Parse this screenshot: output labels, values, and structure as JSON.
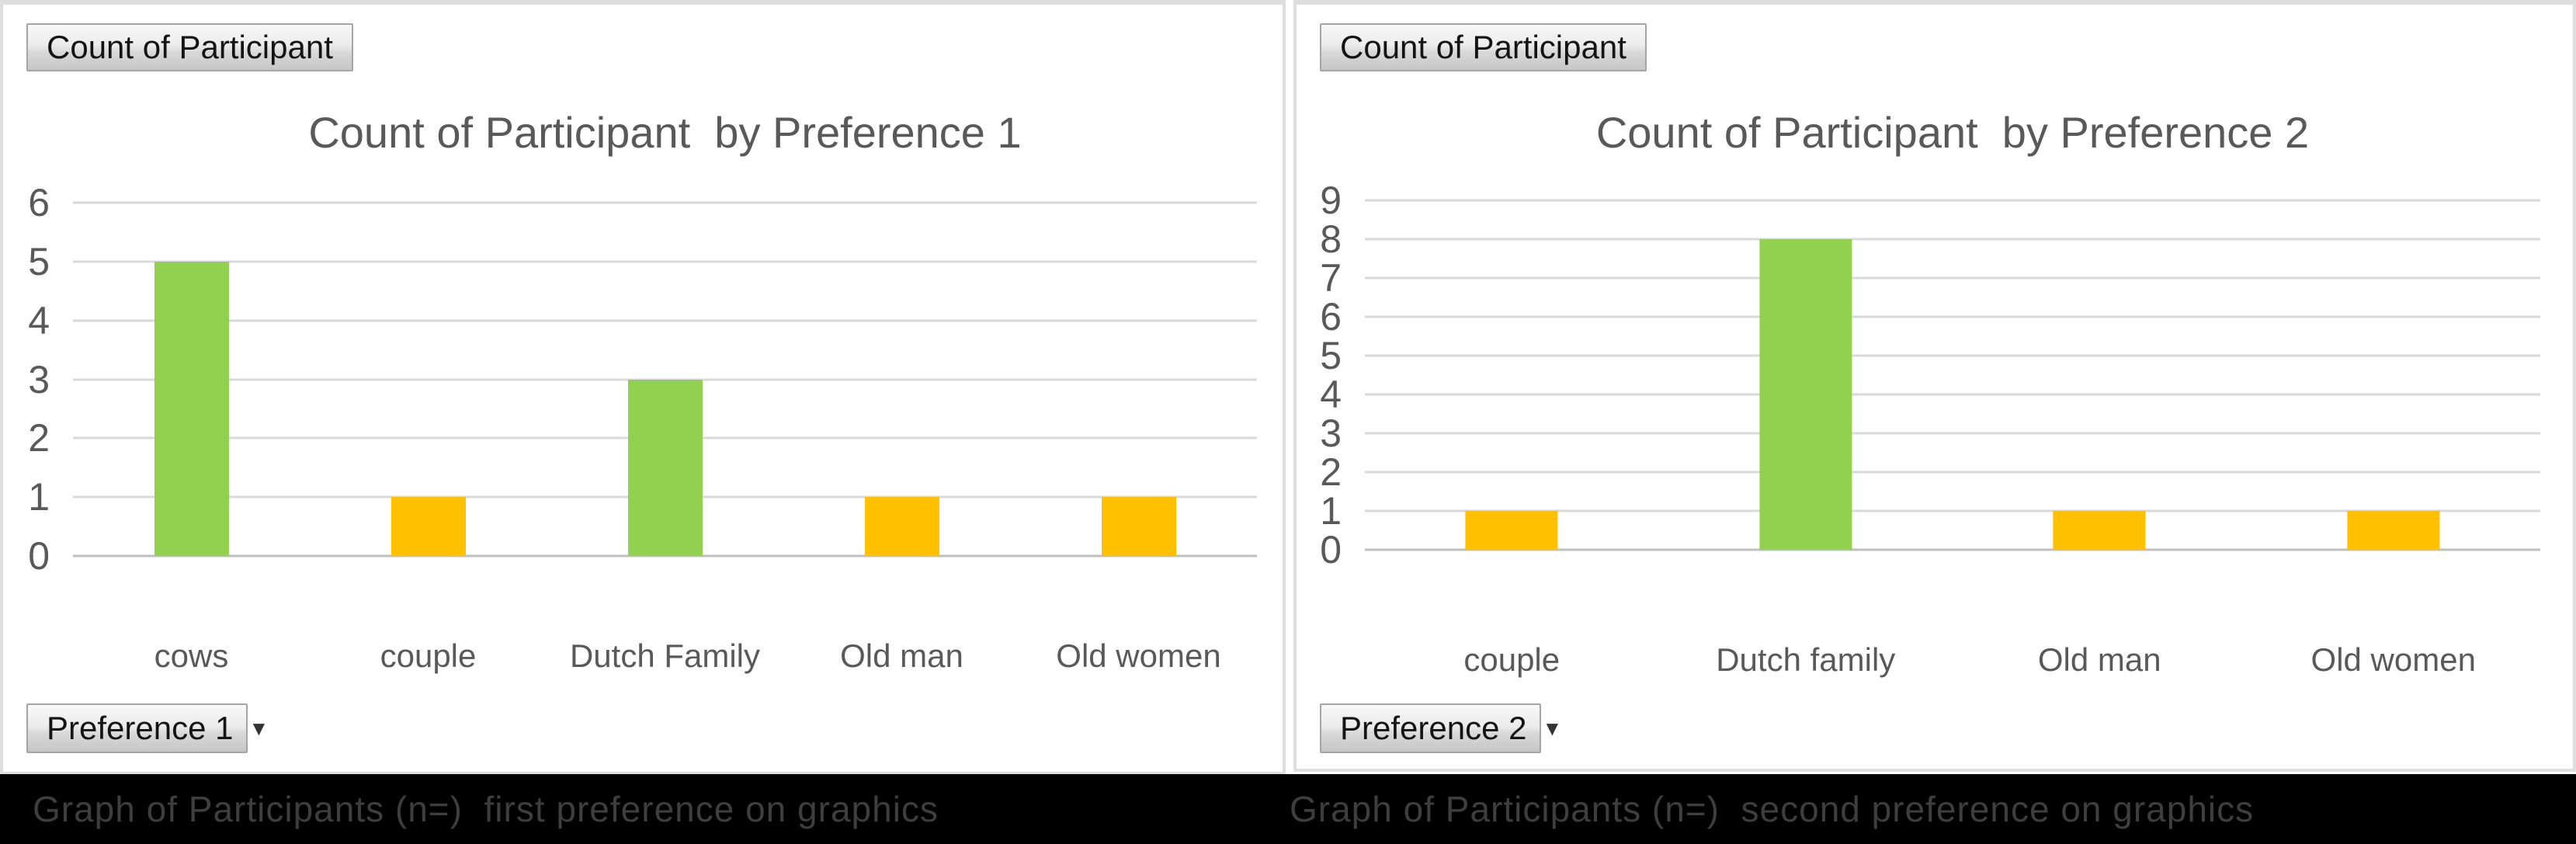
{
  "colors": {
    "green": "#92D050",
    "orange": "#FFC000",
    "gridline": "#D9D9D9",
    "axis_line": "#BFBFBF",
    "chart_text": "#595959",
    "caption_text": "#3E3E3E",
    "caption_bar_bg": "#000000",
    "panel_bg": "#FFFFFF"
  },
  "dropdown_arrow_icon": "▼",
  "chart_data": [
    {
      "type": "bar",
      "title": "Count of Participant  by Preference 1",
      "field_button_label": "Count of Participant",
      "axis_button_label": "Preference 1",
      "caption": "Graph of Participants (n=)  first preference on graphics",
      "categories": [
        "cows",
        "couple",
        "Dutch Family",
        "Old man",
        "Old women"
      ],
      "values": [
        5,
        1,
        3,
        1,
        1
      ],
      "bar_colors": [
        "#92D050",
        "#FFC000",
        "#92D050",
        "#FFC000",
        "#FFC000"
      ],
      "ylim": [
        0,
        6
      ],
      "y_ticks": [
        0,
        1,
        2,
        3,
        4,
        5,
        6
      ],
      "grid": true,
      "legend": "none",
      "xlabel": "",
      "ylabel": ""
    },
    {
      "type": "bar",
      "title": "Count of Participant  by Preference 2",
      "field_button_label": "Count of Participant",
      "axis_button_label": "Preference 2",
      "caption": "Graph of Participants (n=)  second preference on graphics",
      "categories": [
        "couple",
        "Dutch family",
        "Old man",
        "Old women"
      ],
      "values": [
        1,
        8,
        1,
        1
      ],
      "bar_colors": [
        "#FFC000",
        "#92D050",
        "#FFC000",
        "#FFC000"
      ],
      "ylim": [
        0,
        9
      ],
      "y_ticks": [
        0,
        1,
        2,
        3,
        4,
        5,
        6,
        7,
        8,
        9
      ],
      "grid": true,
      "legend": "none",
      "xlabel": "",
      "ylabel": ""
    }
  ]
}
